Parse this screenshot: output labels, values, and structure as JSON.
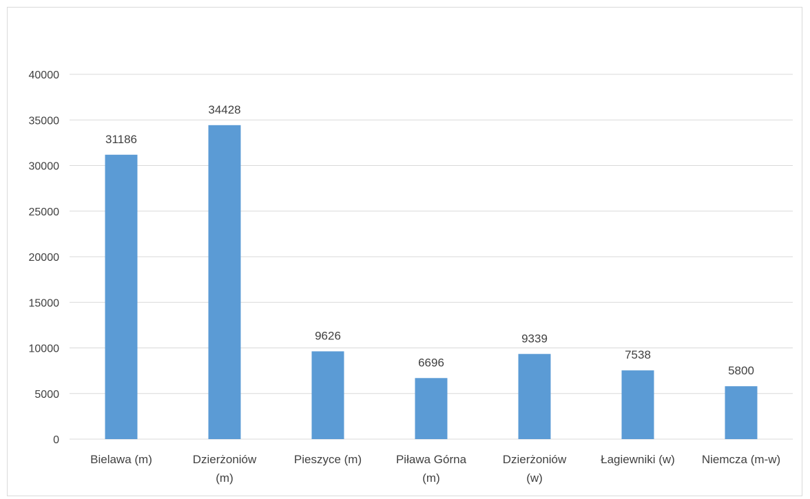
{
  "chart_data": {
    "type": "bar",
    "title": "",
    "xlabel": "",
    "ylabel": "",
    "categories": [
      [
        "Bielawa (m)"
      ],
      [
        "Dzierżoniów",
        "(m)"
      ],
      [
        "Pieszyce (m)"
      ],
      [
        "Piława Górna",
        "(m)"
      ],
      [
        "Dzierżoniów",
        "(w)"
      ],
      [
        "Łagiewniki (w)"
      ],
      [
        "Niemcza (m-w)"
      ]
    ],
    "values": [
      31186,
      34428,
      9626,
      6696,
      9339,
      7538,
      5800
    ],
    "ylim": [
      0,
      40000
    ],
    "yticks": [
      "0",
      "5000",
      "10000",
      "15000",
      "20000",
      "25000",
      "30000",
      "35000",
      "40000"
    ],
    "grid": true,
    "legend": "none",
    "colors": {
      "bar": "#5b9bd5",
      "gridline": "#d9d9d9",
      "text": "#404040"
    }
  }
}
